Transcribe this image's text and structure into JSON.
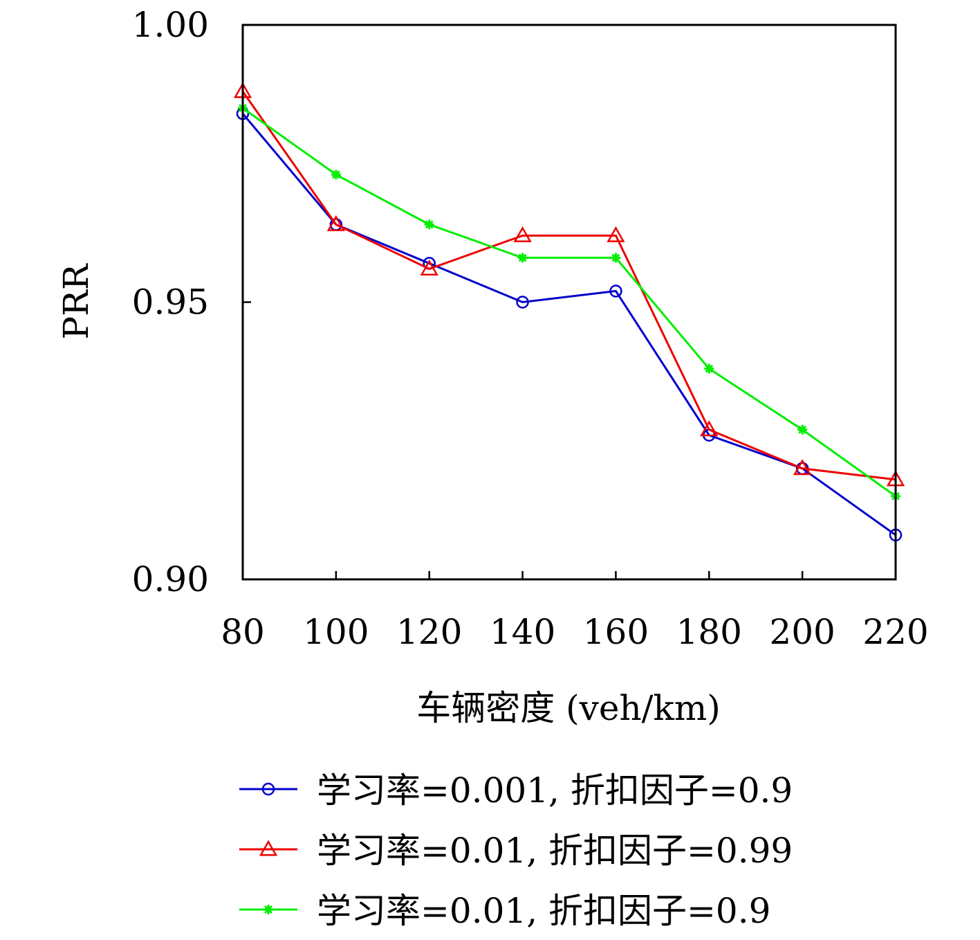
{
  "chart_data": {
    "type": "line",
    "xlabel": "车辆密度 (veh/km)",
    "ylabel": "PRR",
    "x": [
      80,
      100,
      120,
      140,
      160,
      180,
      200,
      220
    ],
    "xticks": [
      "80",
      "100",
      "120",
      "140",
      "160",
      "180",
      "200",
      "220"
    ],
    "yticks": [
      "0.90",
      "0.95",
      "1.00"
    ],
    "ytick_values": [
      0.9,
      0.95,
      1.0
    ],
    "xlim": [
      80,
      220
    ],
    "ylim": [
      0.9,
      1.0
    ],
    "grid": false,
    "legend_position": "bottom",
    "series": [
      {
        "name": "学习率=0.001, 折扣因子=0.9",
        "color": "#0000cc",
        "marker": "circle",
        "values": [
          0.984,
          0.964,
          0.957,
          0.95,
          0.952,
          0.926,
          0.92,
          0.908
        ]
      },
      {
        "name": "学习率=0.01, 折扣因子=0.99",
        "color": "#ee0000",
        "marker": "triangle",
        "values": [
          0.988,
          0.964,
          0.956,
          0.962,
          0.962,
          0.927,
          0.92,
          0.918
        ]
      },
      {
        "name": "学习率=0.01, 折扣因子=0.9",
        "color": "#00ee00",
        "marker": "asterisk",
        "values": [
          0.985,
          0.973,
          0.964,
          0.958,
          0.958,
          0.938,
          0.927,
          0.915
        ]
      }
    ]
  }
}
